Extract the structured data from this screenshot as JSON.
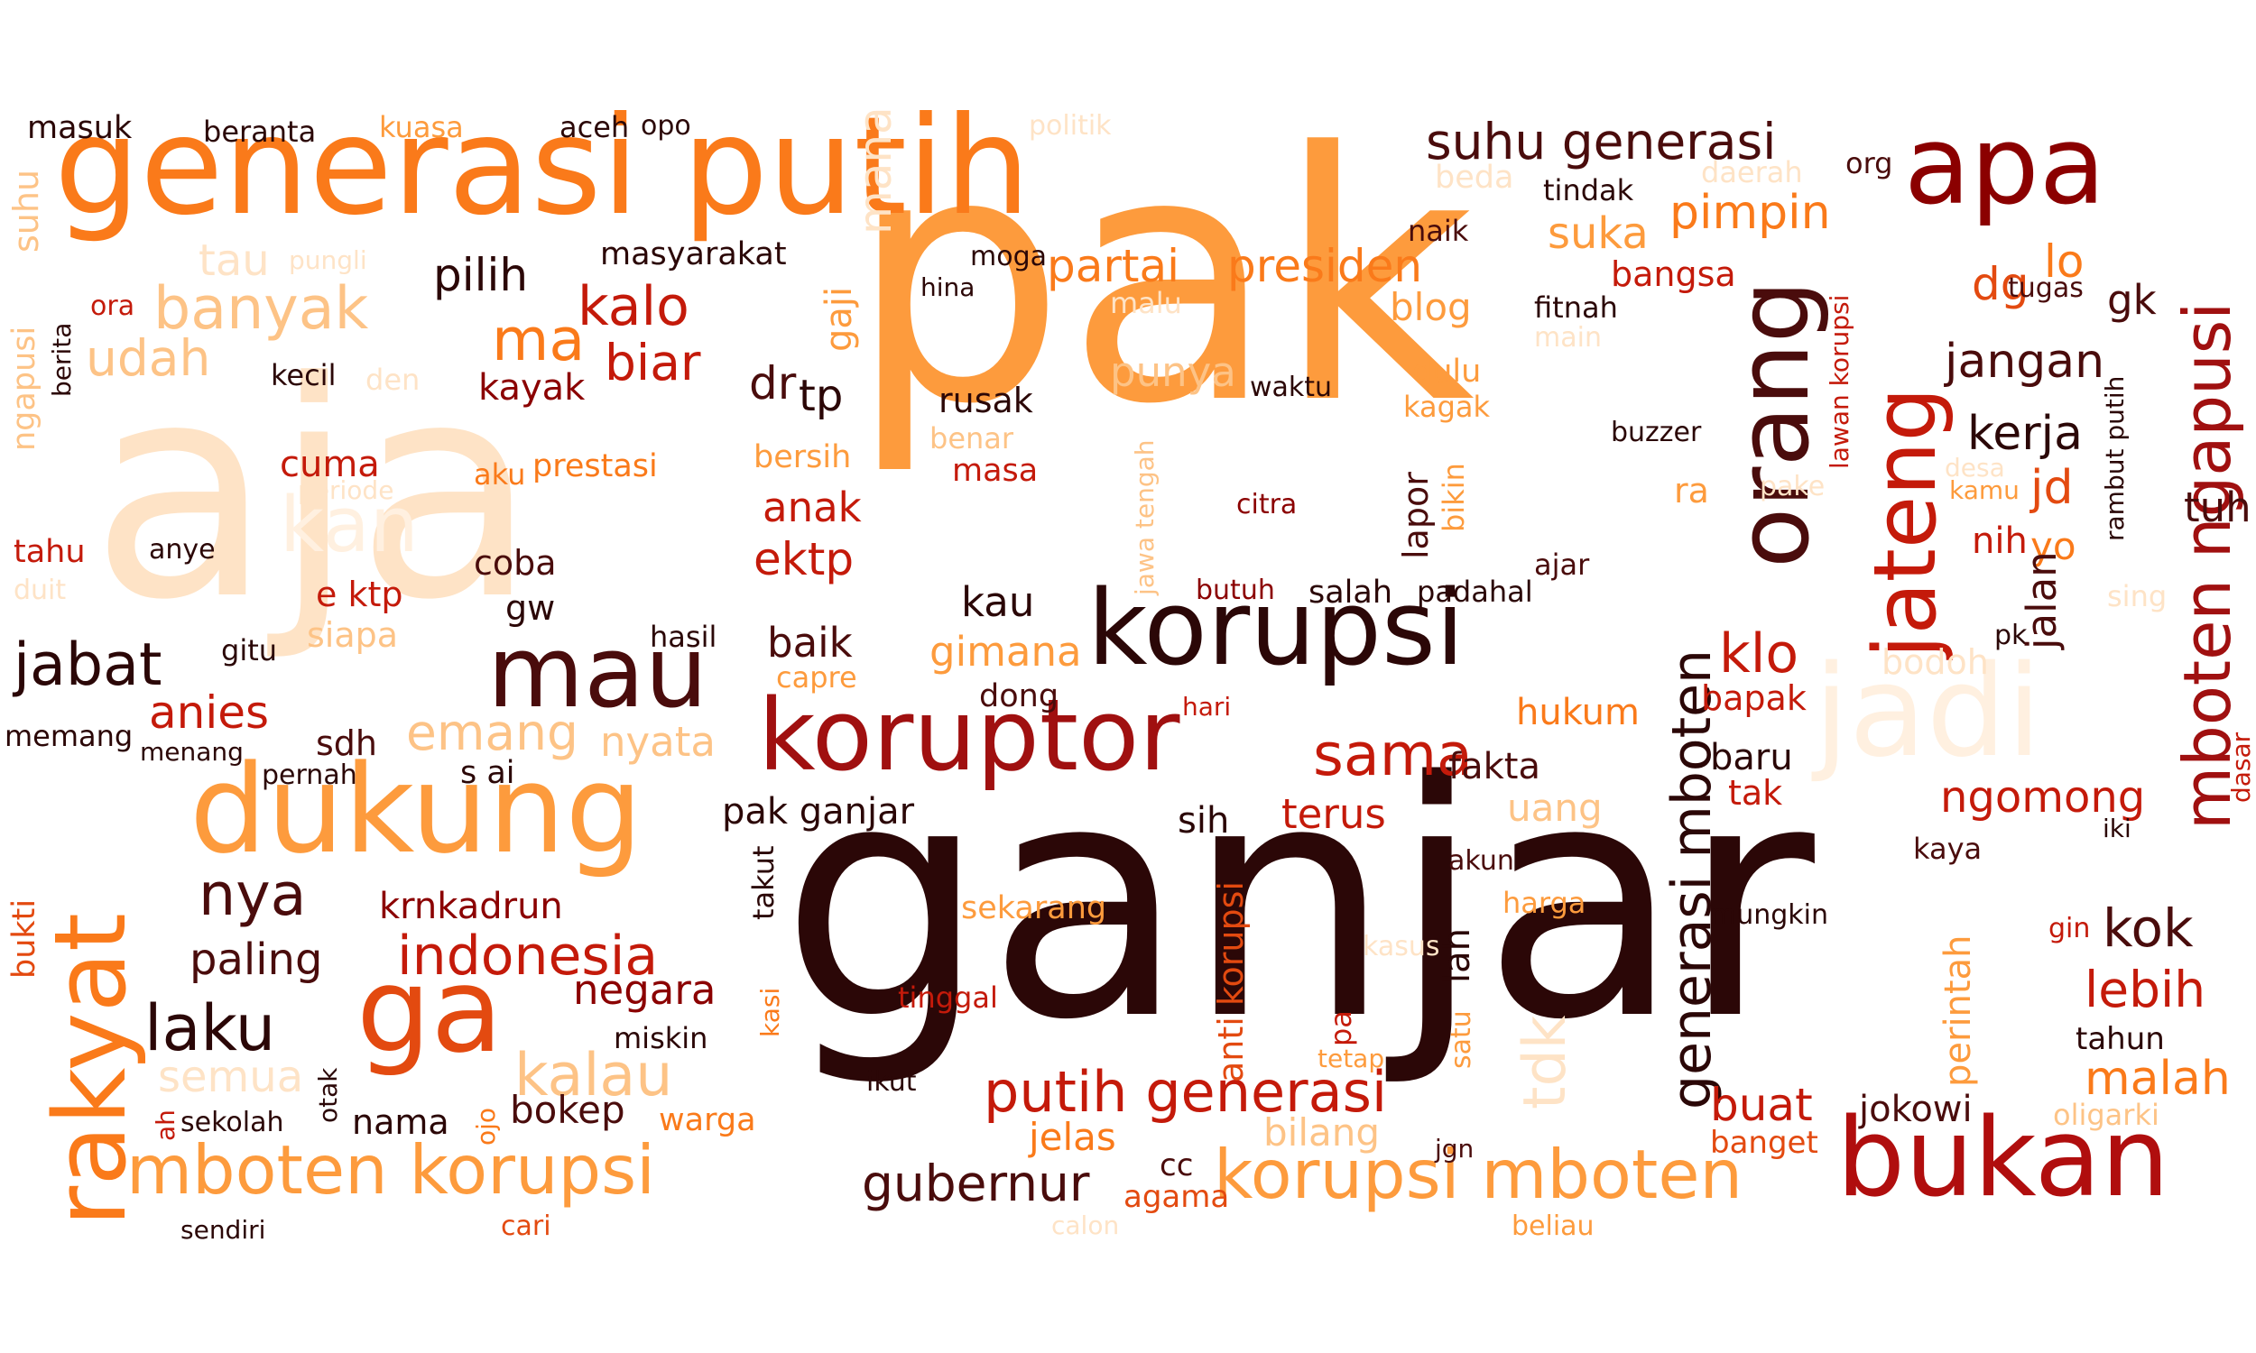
{
  "palette": {
    "darkest": "#2b0707",
    "dark_brown": "#4a0c0c",
    "dark_red": "#8b0000",
    "red": "#c41a0a",
    "orange_red": "#e34a10",
    "orange": "#fa7a1a",
    "light_orange": "#fd9b3d",
    "peach": "#fdc386",
    "pale": "#fee3c6",
    "very_pale": "#fff0e0",
    "black": "#1a0a0a"
  },
  "words": [
    {
      "text": "ganjar",
      "color": "#2b0707"
    },
    {
      "text": "pak",
      "color": "#fd9b3d"
    },
    {
      "text": "aja",
      "color": "#fee3c6"
    },
    {
      "text": "generasi putih",
      "color": "#fa7a1a"
    },
    {
      "text": "korupsi",
      "color": "#2b0707"
    },
    {
      "text": "dukung",
      "color": "#fd9b3d"
    },
    {
      "text": "koruptor",
      "color": "#a01010"
    },
    {
      "text": "bukan",
      "color": "#b00e0e"
    },
    {
      "text": "jadi",
      "color": "#fff0e0"
    },
    {
      "text": "apa",
      "color": "#8b0000"
    },
    {
      "text": "rakyat",
      "color": "#fa7a1a"
    },
    {
      "text": "orang",
      "color": "#4a0c0c"
    },
    {
      "text": "jateng",
      "color": "#c41a0a"
    },
    {
      "text": "mau",
      "color": "#4a0c0c"
    },
    {
      "text": "ga",
      "color": "#e34a10"
    },
    {
      "text": "mboten korupsi",
      "color": "#fd9b3d"
    },
    {
      "text": "korupsi mboten",
      "color": "#fd9b3d"
    },
    {
      "text": "putih generasi",
      "color": "#c41a0a"
    },
    {
      "text": "suhu generasi",
      "color": "#4a0c0c"
    },
    {
      "text": "mboten ngapusi",
      "color": "#a01010"
    },
    {
      "text": "generasi mboten",
      "color": "#2b0707"
    },
    {
      "text": "jabat",
      "color": "#2b0707"
    },
    {
      "text": "indonesia",
      "color": "#c41a0a"
    },
    {
      "text": "banyak",
      "color": "#fdc386"
    },
    {
      "text": "kalau",
      "color": "#fdc386"
    },
    {
      "text": "sama",
      "color": "#c41a0a"
    },
    {
      "text": "kalo",
      "color": "#c41a0a"
    },
    {
      "text": "laku",
      "color": "#2b0707"
    },
    {
      "text": "nya",
      "color": "#4a0c0c"
    },
    {
      "text": "gubernur",
      "color": "#4a0c0c"
    },
    {
      "text": "partai",
      "color": "#fa7a1a"
    },
    {
      "text": "presiden",
      "color": "#fa7a1a"
    },
    {
      "text": "pimpin",
      "color": "#fa7a1a"
    },
    {
      "text": "emang",
      "color": "#fdc386"
    },
    {
      "text": "kerja",
      "color": "#2b0707"
    },
    {
      "text": "jangan",
      "color": "#4a0c0c"
    },
    {
      "text": "klo",
      "color": "#c41a0a"
    },
    {
      "text": "ma",
      "color": "#fa7a1a"
    },
    {
      "text": "biar",
      "color": "#c41a0a"
    },
    {
      "text": "pilih",
      "color": "#2b0707"
    },
    {
      "text": "udah",
      "color": "#fdc386"
    },
    {
      "text": "anies",
      "color": "#c41a0a"
    },
    {
      "text": "ngomong",
      "color": "#c41a0a"
    },
    {
      "text": "malah",
      "color": "#fa7a1a"
    },
    {
      "text": "lebih",
      "color": "#c41a0a"
    },
    {
      "text": "kok",
      "color": "#4a0c0c"
    },
    {
      "text": "nyata",
      "color": "#fdc386"
    },
    {
      "text": "terus",
      "color": "#c41a0a"
    },
    {
      "text": "suka",
      "color": "#fd9b3d"
    },
    {
      "text": "blog",
      "color": "#fd9b3d"
    },
    {
      "text": "paling",
      "color": "#4a0c0c"
    },
    {
      "text": "negara",
      "color": "#8b0000"
    },
    {
      "text": "krnkadrun",
      "color": "#8b0000"
    },
    {
      "text": "semua",
      "color": "#fee3c6"
    },
    {
      "text": "buat",
      "color": "#c41a0a"
    },
    {
      "text": "bokep",
      "color": "#4a0c0c"
    },
    {
      "text": "anak",
      "color": "#c41a0a"
    },
    {
      "text": "ektp",
      "color": "#c41a0a"
    },
    {
      "text": "baik",
      "color": "#4a0c0c"
    },
    {
      "text": "gimana",
      "color": "#fd9b3d"
    },
    {
      "text": "kau",
      "color": "#2b0707"
    },
    {
      "text": "pak ganjar",
      "color": "#2b0707"
    },
    {
      "text": "dr",
      "color": "#4a0c0c"
    },
    {
      "text": "tp",
      "color": "#2b0707"
    },
    {
      "text": "hukum",
      "color": "#fa7a1a"
    },
    {
      "text": "bapak",
      "color": "#c41a0a"
    },
    {
      "text": "fakta",
      "color": "#4a0c0c"
    },
    {
      "text": "baru",
      "color": "#2b0707"
    },
    {
      "text": "tak",
      "color": "#c41a0a"
    },
    {
      "text": "uang",
      "color": "#fdc386"
    },
    {
      "text": "sih",
      "color": "#2b0707"
    },
    {
      "text": "jelas",
      "color": "#fa7a1a"
    },
    {
      "text": "bilang",
      "color": "#fdc386"
    },
    {
      "text": "agama",
      "color": "#e34a10"
    },
    {
      "text": "cc",
      "color": "#4a0c0c"
    },
    {
      "text": "jokowi",
      "color": "#4a0c0c"
    },
    {
      "text": "banget",
      "color": "#e34a10"
    },
    {
      "text": "oligarki",
      "color": "#fdc386"
    },
    {
      "text": "tahun",
      "color": "#2b0707"
    },
    {
      "text": "dg",
      "color": "#e34a10"
    },
    {
      "text": "lo",
      "color": "#fa7a1a"
    },
    {
      "text": "gk",
      "color": "#4a0c0c"
    },
    {
      "text": "jd",
      "color": "#e34a10"
    },
    {
      "text": "tuh",
      "color": "#4a0c0c"
    },
    {
      "text": "nih",
      "color": "#c41a0a"
    },
    {
      "text": "yo",
      "color": "#fa7a1a"
    },
    {
      "text": "sing",
      "color": "#fee3c6"
    },
    {
      "text": "pk",
      "color": "#2b0707"
    },
    {
      "text": "dasar",
      "color": "#c41a0a"
    },
    {
      "text": "iki",
      "color": "#2b0707"
    },
    {
      "text": "kaya",
      "color": "#4a0c0c"
    },
    {
      "text": "gin",
      "color": "#c41a0a"
    },
    {
      "text": "bodoh",
      "color": "#fee3c6"
    },
    {
      "text": "ra",
      "color": "#fd9b3d"
    },
    {
      "text": "pake",
      "color": "#fee3c6"
    },
    {
      "text": "desa",
      "color": "#fee3c6"
    },
    {
      "text": "kamu",
      "color": "#fd9b3d"
    },
    {
      "text": "tugas",
      "color": "#4a0c0c"
    },
    {
      "text": "bangsa",
      "color": "#c41a0a"
    },
    {
      "text": "fitnah",
      "color": "#2b0707"
    },
    {
      "text": "main",
      "color": "#fee3c6"
    },
    {
      "text": "tindak",
      "color": "#2b0707"
    },
    {
      "text": "daerah",
      "color": "#fee3c6"
    },
    {
      "text": "org",
      "color": "#4a0c0c"
    },
    {
      "text": "naik",
      "color": "#4a0c0c"
    },
    {
      "text": "beda",
      "color": "#fee3c6"
    },
    {
      "text": "buzzer",
      "color": "#2b0707"
    },
    {
      "text": "padahal",
      "color": "#2b0707"
    },
    {
      "text": "ajar",
      "color": "#4a0c0c"
    },
    {
      "text": "salah",
      "color": "#2b0707"
    },
    {
      "text": "butuh",
      "color": "#8b0000"
    },
    {
      "text": "citra",
      "color": "#8b0000"
    },
    {
      "text": "hari",
      "color": "#c41a0a"
    },
    {
      "text": "dong",
      "color": "#4a0c0c"
    },
    {
      "text": "capre",
      "color": "#fd9b3d"
    },
    {
      "text": "rusak",
      "color": "#2b0707"
    },
    {
      "text": "benar",
      "color": "#fdc386"
    },
    {
      "text": "masa",
      "color": "#c41a0a"
    },
    {
      "text": "bersih",
      "color": "#fd9b3d"
    },
    {
      "text": "waktu",
      "color": "#2b0707"
    },
    {
      "text": "punya",
      "color": "#fdc386"
    },
    {
      "text": "dulu",
      "color": "#fd9b3d"
    },
    {
      "text": "kagak",
      "color": "#fd9b3d"
    },
    {
      "text": "malu",
      "color": "#fee3c6"
    },
    {
      "text": "moga",
      "color": "#2b0707"
    },
    {
      "text": "hina",
      "color": "#2b0707"
    },
    {
      "text": "politik",
      "color": "#fee3c6"
    },
    {
      "text": "masyarakat",
      "color": "#2b0707"
    },
    {
      "text": "opo",
      "color": "#2b0707"
    },
    {
      "text": "aceh",
      "color": "#2b0707"
    },
    {
      "text": "kuasa",
      "color": "#fd9b3d"
    },
    {
      "text": "beranta",
      "color": "#2b0707"
    },
    {
      "text": "masuk",
      "color": "#2b0707"
    },
    {
      "text": "tau",
      "color": "#fee3c6"
    },
    {
      "text": "pungli",
      "color": "#fee3c6"
    },
    {
      "text": "ora",
      "color": "#c41a0a"
    },
    {
      "text": "kecil",
      "color": "#2b0707"
    },
    {
      "text": "den",
      "color": "#fee3c6"
    },
    {
      "text": "kayak",
      "color": "#8b0000"
    },
    {
      "text": "cuma",
      "color": "#c41a0a"
    },
    {
      "text": "periode",
      "color": "#fee3c6"
    },
    {
      "text": "aku",
      "color": "#fa7a1a"
    },
    {
      "text": "prestasi",
      "color": "#fa7a1a"
    },
    {
      "text": "kan",
      "color": "#fff0e0"
    },
    {
      "text": "anye",
      "color": "#2b0707"
    },
    {
      "text": "tahu",
      "color": "#c41a0a"
    },
    {
      "text": "duit",
      "color": "#fee3c6"
    },
    {
      "text": "coba",
      "color": "#4a0c0c"
    },
    {
      "text": "e ktp",
      "color": "#c41a0a"
    },
    {
      "text": "gw",
      "color": "#2b0707"
    },
    {
      "text": "hasil",
      "color": "#2b0707"
    },
    {
      "text": "siapa",
      "color": "#fdc386"
    },
    {
      "text": "gitu",
      "color": "#2b0707"
    },
    {
      "text": "memang",
      "color": "#2b0707"
    },
    {
      "text": "menang",
      "color": "#2b0707"
    },
    {
      "text": "sdh",
      "color": "#4a0c0c"
    },
    {
      "text": "pernah",
      "color": "#2b0707"
    },
    {
      "text": "s ai",
      "color": "#2b0707"
    },
    {
      "text": "miskin",
      "color": "#2b0707"
    },
    {
      "text": "sekolah",
      "color": "#2b0707"
    },
    {
      "text": "nama",
      "color": "#2b0707"
    },
    {
      "text": "warga",
      "color": "#fa7a1a"
    },
    {
      "text": "sendiri",
      "color": "#2b0707"
    },
    {
      "text": "cari",
      "color": "#e34a10"
    },
    {
      "text": "sekarang",
      "color": "#fd9b3d"
    },
    {
      "text": "tinggal",
      "color": "#c41a0a"
    },
    {
      "text": "ikut",
      "color": "#2b0707"
    },
    {
      "text": "akun",
      "color": "#4a0c0c"
    },
    {
      "text": "harga",
      "color": "#fd9b3d"
    },
    {
      "text": "kasus",
      "color": "#fee3c6"
    },
    {
      "text": "tetap",
      "color": "#fd9b3d"
    },
    {
      "text": "jgn",
      "color": "#4a0c0c"
    },
    {
      "text": "calon",
      "color": "#fee3c6"
    },
    {
      "text": "beliau",
      "color": "#fd9b3d"
    },
    {
      "text": "mungkin",
      "color": "#2b0707"
    },
    {
      "text": "suhu",
      "color": "#fdc386"
    },
    {
      "text": "ngapusi",
      "color": "#fdc386"
    },
    {
      "text": "berita",
      "color": "#2b0707"
    },
    {
      "text": "bukti",
      "color": "#e34a10"
    },
    {
      "text": "ah",
      "color": "#c41a0a"
    },
    {
      "text": "otak",
      "color": "#2b0707"
    },
    {
      "text": "ojo",
      "color": "#fa7a1a"
    },
    {
      "text": "kasi",
      "color": "#fa7a1a"
    },
    {
      "text": "takut",
      "color": "#2b0707"
    },
    {
      "text": "gaji",
      "color": "#fd9b3d"
    },
    {
      "text": "mana",
      "color": "#fee3c6"
    },
    {
      "text": "anti korupsi",
      "color": "#e34a10"
    },
    {
      "text": "jawa tengah",
      "color": "#fdc386"
    },
    {
      "text": "lapor",
      "color": "#4a0c0c"
    },
    {
      "text": "bikin",
      "color": "#fd9b3d"
    },
    {
      "text": "tdk",
      "color": "#fee3c6"
    },
    {
      "text": "lah",
      "color": "#2b0707"
    },
    {
      "text": "satu",
      "color": "#fd9b3d"
    },
    {
      "text": "pa",
      "color": "#c41a0a"
    },
    {
      "text": "perintah",
      "color": "#fd9b3d"
    },
    {
      "text": "jalan",
      "color": "#4a0c0c"
    },
    {
      "text": "lawan korupsi",
      "color": "#c41a0a"
    },
    {
      "text": "rambut putih",
      "color": "#2b0707"
    }
  ]
}
